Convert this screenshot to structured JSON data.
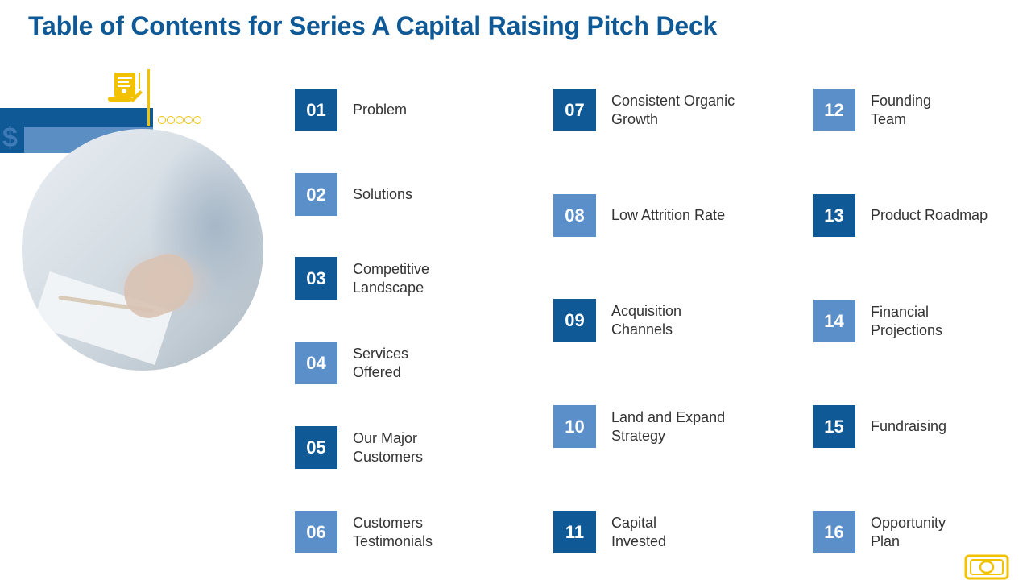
{
  "title": "Table of Contents for Series A Capital Raising Pitch Deck",
  "decoration": {
    "symbol": "$"
  },
  "colors": {
    "dark_blue": "#0f5a96",
    "light_blue": "#5b8fc9",
    "accent_yellow": "#f2c200"
  },
  "toc": [
    {
      "num": "01",
      "label": "Problem",
      "style": "dark"
    },
    {
      "num": "02",
      "label": "Solutions",
      "style": "light"
    },
    {
      "num": "03",
      "label": "Competitive Landscape",
      "style": "dark"
    },
    {
      "num": "04",
      "label": "Services Offered",
      "style": "light"
    },
    {
      "num": "05",
      "label": "Our Major Customers",
      "style": "dark"
    },
    {
      "num": "06",
      "label": "Customers Testimonials",
      "style": "light"
    },
    {
      "num": "07",
      "label": "Consistent Organic Growth",
      "style": "dark"
    },
    {
      "num": "08",
      "label": "Low Attrition Rate",
      "style": "light"
    },
    {
      "num": "09",
      "label": "Acquisition Channels",
      "style": "dark"
    },
    {
      "num": "10",
      "label": "Land and Expand Strategy",
      "style": "light"
    },
    {
      "num": "11",
      "label": "Capital Invested",
      "style": "dark"
    },
    {
      "num": "12",
      "label": "Founding Team",
      "style": "light"
    },
    {
      "num": "13",
      "label": "Product Roadmap",
      "style": "dark"
    },
    {
      "num": "14",
      "label": "Financial Projections",
      "style": "light"
    },
    {
      "num": "15",
      "label": "Fundraising",
      "style": "dark"
    },
    {
      "num": "16",
      "label": "Opportunity Plan",
      "style": "light"
    }
  ]
}
